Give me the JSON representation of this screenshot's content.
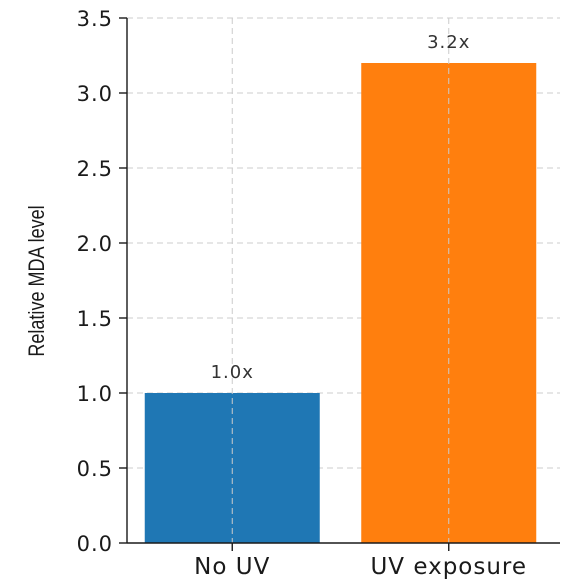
{
  "chart_data": {
    "type": "bar",
    "categories": [
      "No UV",
      "UV exposure"
    ],
    "values": [
      1.0,
      3.2
    ],
    "data_labels": [
      "1.0x",
      "3.2x"
    ],
    "colors": [
      "#1f77b4",
      "#ff7f0e"
    ],
    "title": "",
    "xlabel": "",
    "ylabel": "Relative MDA level",
    "ylim": [
      0,
      3.5
    ],
    "yticks": [
      "0.0",
      "0.5",
      "1.0",
      "1.5",
      "2.0",
      "2.5",
      "3.0",
      "3.5"
    ],
    "grid": true,
    "legend": "none"
  }
}
